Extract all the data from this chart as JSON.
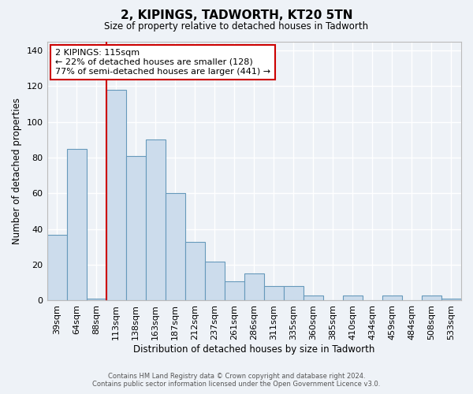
{
  "title": "2, KIPINGS, TADWORTH, KT20 5TN",
  "subtitle": "Size of property relative to detached houses in Tadworth",
  "xlabel": "Distribution of detached houses by size in Tadworth",
  "ylabel": "Number of detached properties",
  "categories": [
    "39sqm",
    "64sqm",
    "88sqm",
    "113sqm",
    "138sqm",
    "163sqm",
    "187sqm",
    "212sqm",
    "237sqm",
    "261sqm",
    "286sqm",
    "311sqm",
    "335sqm",
    "360sqm",
    "385sqm",
    "410sqm",
    "434sqm",
    "459sqm",
    "484sqm",
    "508sqm",
    "533sqm"
  ],
  "values": [
    37,
    85,
    1,
    118,
    81,
    90,
    60,
    33,
    22,
    11,
    15,
    8,
    8,
    3,
    0,
    3,
    0,
    3,
    0,
    3,
    1
  ],
  "bar_color": "#ccdcec",
  "bar_edge_color": "#6699bb",
  "vline_color": "#cc0000",
  "vline_x_index": 3,
  "annotation_text": "2 KIPINGS: 115sqm\n← 22% of detached houses are smaller (128)\n77% of semi-detached houses are larger (441) →",
  "annotation_box_facecolor": "#ffffff",
  "annotation_box_edgecolor": "#cc0000",
  "ylim": [
    0,
    145
  ],
  "yticks": [
    0,
    20,
    40,
    60,
    80,
    100,
    120,
    140
  ],
  "background_color": "#eef2f7",
  "grid_color": "#ffffff",
  "footer_line1": "Contains HM Land Registry data © Crown copyright and database right 2024.",
  "footer_line2": "Contains public sector information licensed under the Open Government Licence v3.0."
}
